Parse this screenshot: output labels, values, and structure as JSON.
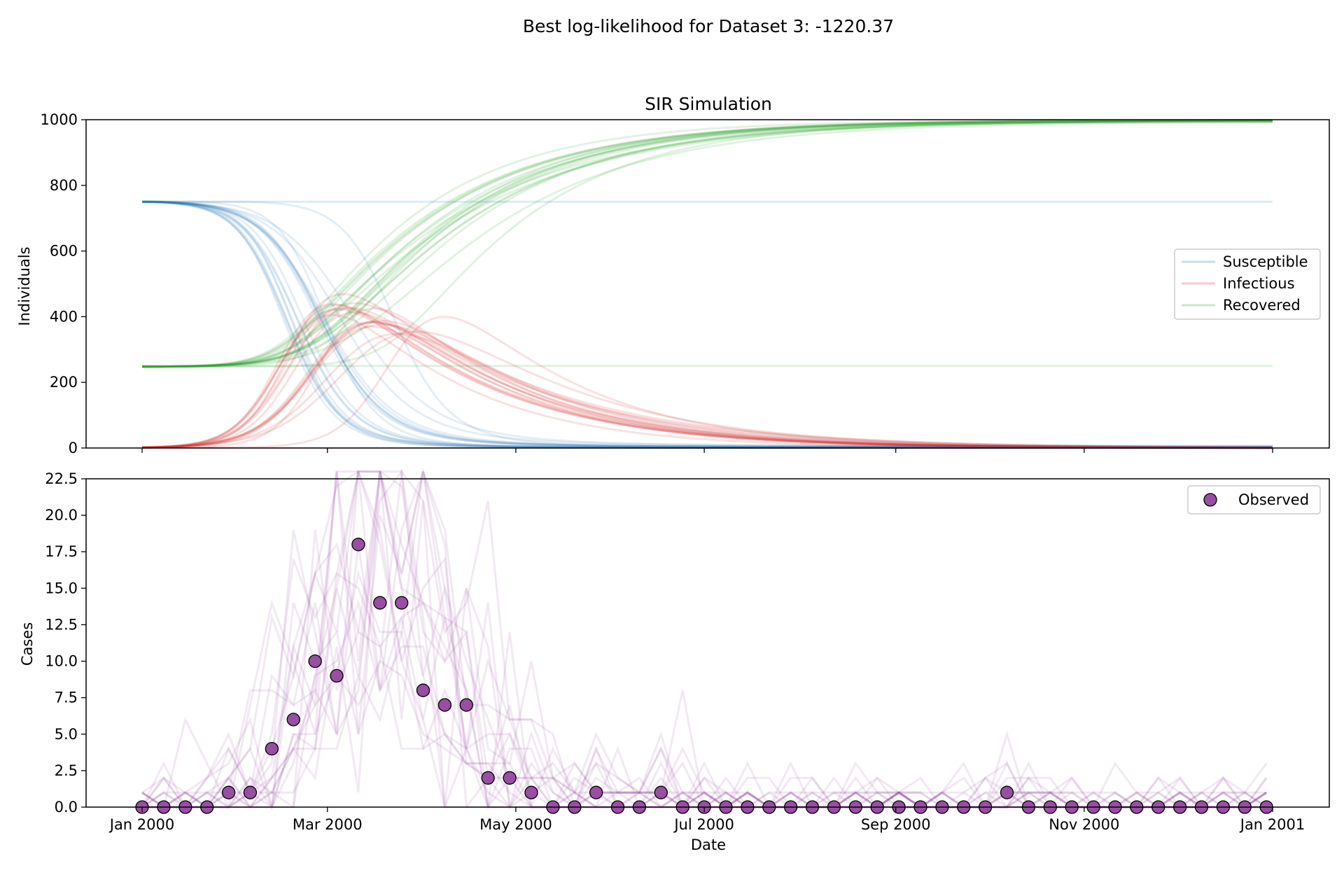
{
  "suptitle": "Best log-likelihood for Dataset 3: -1220.37",
  "chart_data": [
    {
      "type": "line",
      "title": "SIR Simulation",
      "xlabel": "",
      "ylabel": "Individuals",
      "xlim": [
        "2000-01-01",
        "2001-01-01"
      ],
      "ylim": [
        0,
        1000
      ],
      "yticks": [
        0,
        200,
        400,
        600,
        800,
        1000
      ],
      "ytick_labels": [
        "0",
        "200",
        "400",
        "600",
        "800",
        "1000"
      ],
      "xticks": [
        "2000-01-01",
        "2000-03-01",
        "2000-05-01",
        "2000-07-01",
        "2000-09-01",
        "2000-11-01",
        "2001-01-01"
      ],
      "legend_position": "center-right",
      "grid": false,
      "population": 1000,
      "initial_susceptible": 750,
      "initial_recovered": 248,
      "trajectory_count": 20,
      "series": [
        {
          "name": "Susceptible",
          "color": "#1f77b4"
        },
        {
          "name": "Infectious",
          "color": "#d62728"
        },
        {
          "name": "Recovered",
          "color": "#2ca02c"
        }
      ],
      "representative_trajectory": {
        "x": [
          "2000-01-01",
          "2000-01-31",
          "2000-02-15",
          "2000-03-01",
          "2000-03-15",
          "2000-04-01",
          "2000-04-15",
          "2000-05-01",
          "2000-06-01",
          "2000-07-01",
          "2000-08-01",
          "2000-09-01",
          "2000-10-01",
          "2000-11-01",
          "2000-12-01",
          "2001-01-01"
        ],
        "Susceptible": [
          750,
          735,
          690,
          590,
          420,
          150,
          60,
          20,
          5,
          2,
          1,
          1,
          0,
          0,
          0,
          0
        ],
        "Infectious": [
          2,
          15,
          60,
          160,
          300,
          470,
          460,
          400,
          290,
          190,
          110,
          70,
          45,
          30,
          20,
          13
        ],
        "Recovered": [
          248,
          250,
          255,
          270,
          300,
          380,
          480,
          580,
          700,
          808,
          880,
          930,
          955,
          970,
          980,
          987
        ]
      },
      "stalled_trajectory": {
        "Susceptible": 750,
        "Infectious": 0,
        "Recovered": 250
      }
    },
    {
      "type": "scatter",
      "title": "",
      "xlabel": "Date",
      "ylabel": "Cases",
      "xlim": [
        "2000-01-01",
        "2001-01-01"
      ],
      "ylim": [
        0,
        22.5
      ],
      "yticks": [
        0,
        2.5,
        5,
        7.5,
        10,
        12.5,
        15,
        17.5,
        20,
        22.5
      ],
      "ytick_labels": [
        "0.0",
        "2.5",
        "5.0",
        "7.5",
        "10.0",
        "12.5",
        "15.0",
        "17.5",
        "20.0",
        "22.5"
      ],
      "xticks": [
        "2000-01-01",
        "2000-03-01",
        "2000-05-01",
        "2000-07-01",
        "2000-09-01",
        "2000-11-01",
        "2001-01-01"
      ],
      "xtick_labels": [
        "Jan 2000",
        "Mar 2000",
        "May 2000",
        "Jul 2000",
        "Sep 2000",
        "Nov 2000",
        "Jan 2001"
      ],
      "legend_position": "top-right",
      "grid": false,
      "marker_color": "#984ea3",
      "simulated_color": "#984ea3",
      "simulated_count": 20,
      "series": [
        {
          "name": "Observed",
          "x": [
            "2000-01-01",
            "2000-01-08",
            "2000-01-15",
            "2000-01-22",
            "2000-01-29",
            "2000-02-05",
            "2000-02-12",
            "2000-02-19",
            "2000-02-26",
            "2000-03-04",
            "2000-03-11",
            "2000-03-18",
            "2000-03-25",
            "2000-04-01",
            "2000-04-08",
            "2000-04-15",
            "2000-04-22",
            "2000-04-29",
            "2000-05-06",
            "2000-05-13",
            "2000-05-20",
            "2000-05-27",
            "2000-06-03",
            "2000-06-10",
            "2000-06-17",
            "2000-06-24",
            "2000-07-01",
            "2000-07-08",
            "2000-07-15",
            "2000-07-22",
            "2000-07-29",
            "2000-08-05",
            "2000-08-12",
            "2000-08-19",
            "2000-08-26",
            "2000-09-02",
            "2000-09-09",
            "2000-09-16",
            "2000-09-23",
            "2000-09-30",
            "2000-10-07",
            "2000-10-14",
            "2000-10-21",
            "2000-10-28",
            "2000-11-04",
            "2000-11-11",
            "2000-11-18",
            "2000-11-25",
            "2000-12-02",
            "2000-12-09",
            "2000-12-16",
            "2000-12-23",
            "2000-12-30"
          ],
          "values": [
            0,
            0,
            0,
            0,
            1,
            1,
            4,
            6,
            10,
            9,
            18,
            14,
            14,
            8,
            7,
            7,
            2,
            2,
            1,
            0,
            0,
            1,
            0,
            0,
            1,
            0,
            0,
            0,
            0,
            0,
            0,
            0,
            0,
            0,
            0,
            0,
            0,
            0,
            0,
            0,
            1,
            0,
            0,
            0,
            0,
            0,
            0,
            0,
            0,
            0,
            0,
            0,
            0
          ]
        }
      ]
    }
  ]
}
